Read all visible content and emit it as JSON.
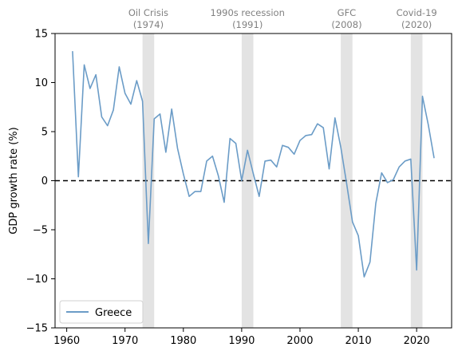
{
  "chart_data": {
    "type": "line",
    "title": "",
    "xlabel": "",
    "ylabel": "GDP growth rate (%)",
    "xlim": [
      1958,
      2026
    ],
    "ylim": [
      -15,
      15
    ],
    "xticks": [
      1960,
      1970,
      1980,
      1990,
      2000,
      2010,
      2020
    ],
    "yticks": [
      -15,
      -10,
      -5,
      0,
      5,
      10,
      15
    ],
    "grid": false,
    "legend": "lower-left",
    "zero_line": {
      "y": 0,
      "style": "dashed",
      "color": "#000000"
    },
    "crisis_bands": [
      {
        "name": "Oil Crisis",
        "year_label": "(1974)",
        "start": 1973,
        "end": 1975
      },
      {
        "name": "1990s recession",
        "year_label": "(1991)",
        "start": 1990,
        "end": 1992
      },
      {
        "name": "GFC",
        "year_label": "(2008)",
        "start": 2007,
        "end": 2009
      },
      {
        "name": "Covid-19",
        "year_label": "(2020)",
        "start": 2019,
        "end": 2021
      }
    ],
    "series": [
      {
        "name": "Greece",
        "color": "#6b9cc7",
        "x": [
          1961,
          1962,
          1963,
          1964,
          1965,
          1966,
          1967,
          1968,
          1969,
          1970,
          1971,
          1972,
          1973,
          1974,
          1975,
          1976,
          1977,
          1978,
          1979,
          1980,
          1981,
          1982,
          1983,
          1984,
          1985,
          1986,
          1987,
          1988,
          1989,
          1990,
          1991,
          1992,
          1993,
          1994,
          1995,
          1996,
          1997,
          1998,
          1999,
          2000,
          2001,
          2002,
          2003,
          2004,
          2005,
          2006,
          2007,
          2008,
          2009,
          2010,
          2011,
          2012,
          2013,
          2014,
          2015,
          2016,
          2017,
          2018,
          2019,
          2020,
          2021,
          2022,
          2023
        ],
        "values": [
          13.2,
          0.4,
          11.8,
          9.4,
          10.8,
          6.5,
          5.6,
          7.2,
          11.6,
          8.9,
          7.8,
          10.2,
          8.1,
          -6.4,
          6.3,
          6.8,
          2.9,
          7.3,
          3.3,
          0.7,
          -1.6,
          -1.1,
          -1.1,
          2.0,
          2.5,
          0.5,
          -2.2,
          4.3,
          3.8,
          0.0,
          3.1,
          0.7,
          -1.6,
          2.0,
          2.1,
          1.4,
          3.6,
          3.4,
          2.7,
          4.1,
          4.6,
          4.7,
          5.8,
          5.4,
          1.2,
          6.4,
          3.4,
          -0.3,
          -4.2,
          -5.6,
          -9.8,
          -8.3,
          -2.3,
          0.8,
          -0.2,
          0.1,
          1.4,
          2.0,
          2.2,
          -9.1,
          8.6,
          5.7,
          2.3
        ]
      }
    ]
  }
}
